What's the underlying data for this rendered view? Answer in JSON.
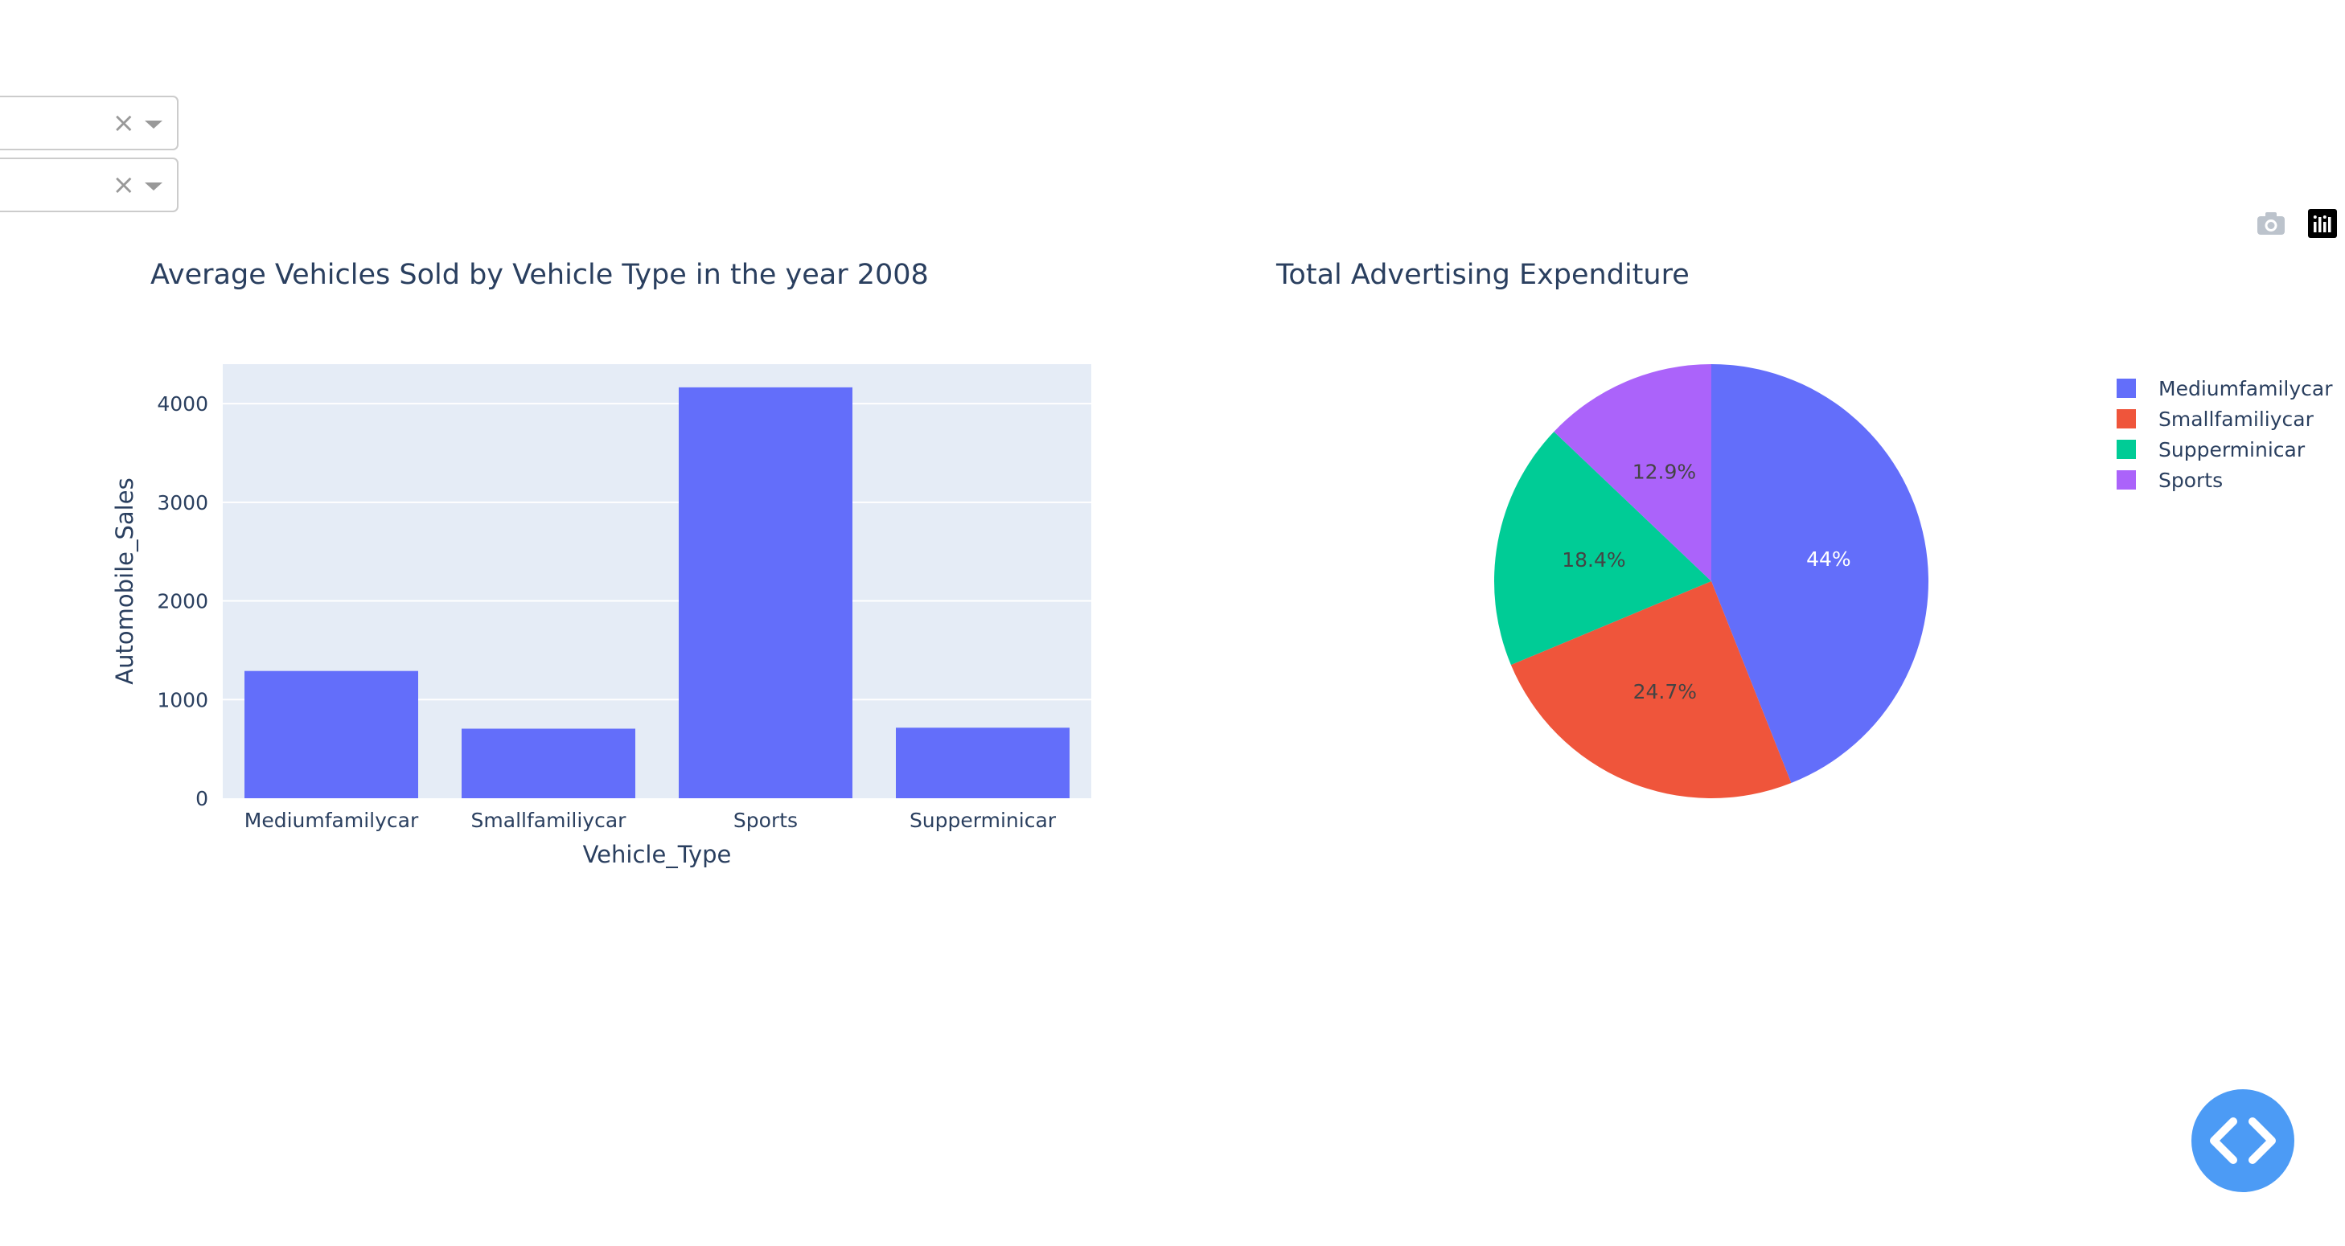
{
  "dropdowns": [
    {
      "value": "",
      "clear_glyph": "×"
    },
    {
      "value": "",
      "clear_glyph": "×"
    }
  ],
  "modebar": {
    "icons": [
      "camera-icon",
      "plotly-logo-icon"
    ]
  },
  "colors": {
    "bar": "#636efa",
    "plot_bg": "#e5ecf6",
    "grid": "#ffffff",
    "text": "#2a3f5f",
    "fab": "#4c9bf5"
  },
  "chart_data": [
    {
      "type": "bar",
      "title": "Average Vehicles Sold by Vehicle Type in the year 2008",
      "categories": [
        "Mediumfamilycar",
        "Smallfamiliycar",
        "Sports",
        "Supperminicar"
      ],
      "values": [
        1290,
        705,
        4165,
        715
      ],
      "xlabel": "Vehicle_Type",
      "ylabel": "Automobile_Sales",
      "ylim": [
        0,
        4400
      ],
      "yticks": [
        0,
        1000,
        2000,
        3000,
        4000
      ],
      "grid": true
    },
    {
      "type": "pie",
      "title": "Total Advertising Expenditure",
      "labels": [
        "Mediumfamilycar",
        "Smallfamiliycar",
        "Supperminicar",
        "Sports"
      ],
      "values": [
        44,
        24.7,
        18.4,
        12.9
      ],
      "text_labels": [
        "44%",
        "24.7%",
        "18.4%",
        "12.9%"
      ],
      "colors": [
        "#636efa",
        "#ef553b",
        "#00cc96",
        "#ab63fa"
      ],
      "legend_position": "top-right"
    }
  ],
  "fab": {
    "icon": "code-brackets-icon"
  }
}
